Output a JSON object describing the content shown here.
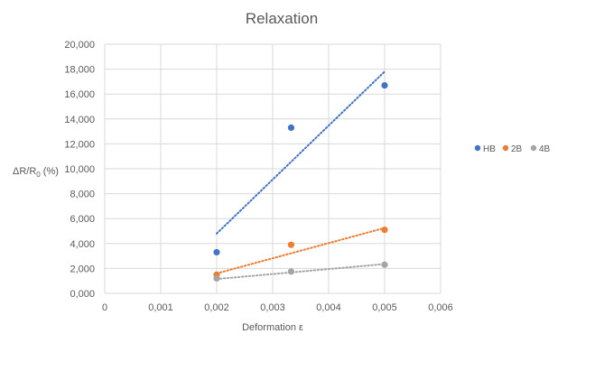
{
  "chart_data": {
    "type": "scatter",
    "title": "Relaxation",
    "xlabel": "Deformation ε",
    "ylabel_main": "ΔR/R",
    "ylabel_sub": "0",
    "ylabel_tail": " (%)",
    "xlim": [
      0,
      0.006
    ],
    "ylim": [
      0,
      20000
    ],
    "x_ticks": [
      {
        "value": 0,
        "label": "0"
      },
      {
        "value": 0.001,
        "label": "0,001"
      },
      {
        "value": 0.002,
        "label": "0,002"
      },
      {
        "value": 0.003,
        "label": "0,003"
      },
      {
        "value": 0.004,
        "label": "0,004"
      },
      {
        "value": 0.005,
        "label": "0,005"
      },
      {
        "value": 0.006,
        "label": "0,006"
      }
    ],
    "y_ticks": [
      {
        "value": 0,
        "label": "0,000"
      },
      {
        "value": 2000,
        "label": "2,000"
      },
      {
        "value": 4000,
        "label": "4,000"
      },
      {
        "value": 6000,
        "label": "6,000"
      },
      {
        "value": 8000,
        "label": "8,000"
      },
      {
        "value": 10000,
        "label": "10,000"
      },
      {
        "value": 12000,
        "label": "12,000"
      },
      {
        "value": 14000,
        "label": "14,000"
      },
      {
        "value": 16000,
        "label": "16,000"
      },
      {
        "value": 18000,
        "label": "18,000"
      },
      {
        "value": 20000,
        "label": "20,000"
      }
    ],
    "grid": true,
    "legend_position": "right",
    "series": [
      {
        "name": "HB",
        "color": "#4472C4",
        "points": [
          {
            "x": 0.002,
            "y": 3300
          },
          {
            "x": 0.00333,
            "y": 13300
          },
          {
            "x": 0.005,
            "y": 16700
          }
        ],
        "trendline": {
          "x_start": 0.002,
          "y_start": 4800,
          "x_end": 0.005,
          "y_end": 17800
        }
      },
      {
        "name": "2B",
        "color": "#ED7D31",
        "points": [
          {
            "x": 0.002,
            "y": 1500
          },
          {
            "x": 0.00333,
            "y": 3900
          },
          {
            "x": 0.005,
            "y": 5100
          }
        ],
        "trendline": {
          "x_start": 0.002,
          "y_start": 1600,
          "x_end": 0.005,
          "y_end": 5250
        }
      },
      {
        "name": "4B",
        "color": "#A5A5A5",
        "points": [
          {
            "x": 0.002,
            "y": 1200
          },
          {
            "x": 0.00333,
            "y": 1750
          },
          {
            "x": 0.005,
            "y": 2300
          }
        ],
        "trendline": {
          "x_start": 0.002,
          "y_start": 1150,
          "x_end": 0.005,
          "y_end": 2350
        }
      }
    ]
  }
}
